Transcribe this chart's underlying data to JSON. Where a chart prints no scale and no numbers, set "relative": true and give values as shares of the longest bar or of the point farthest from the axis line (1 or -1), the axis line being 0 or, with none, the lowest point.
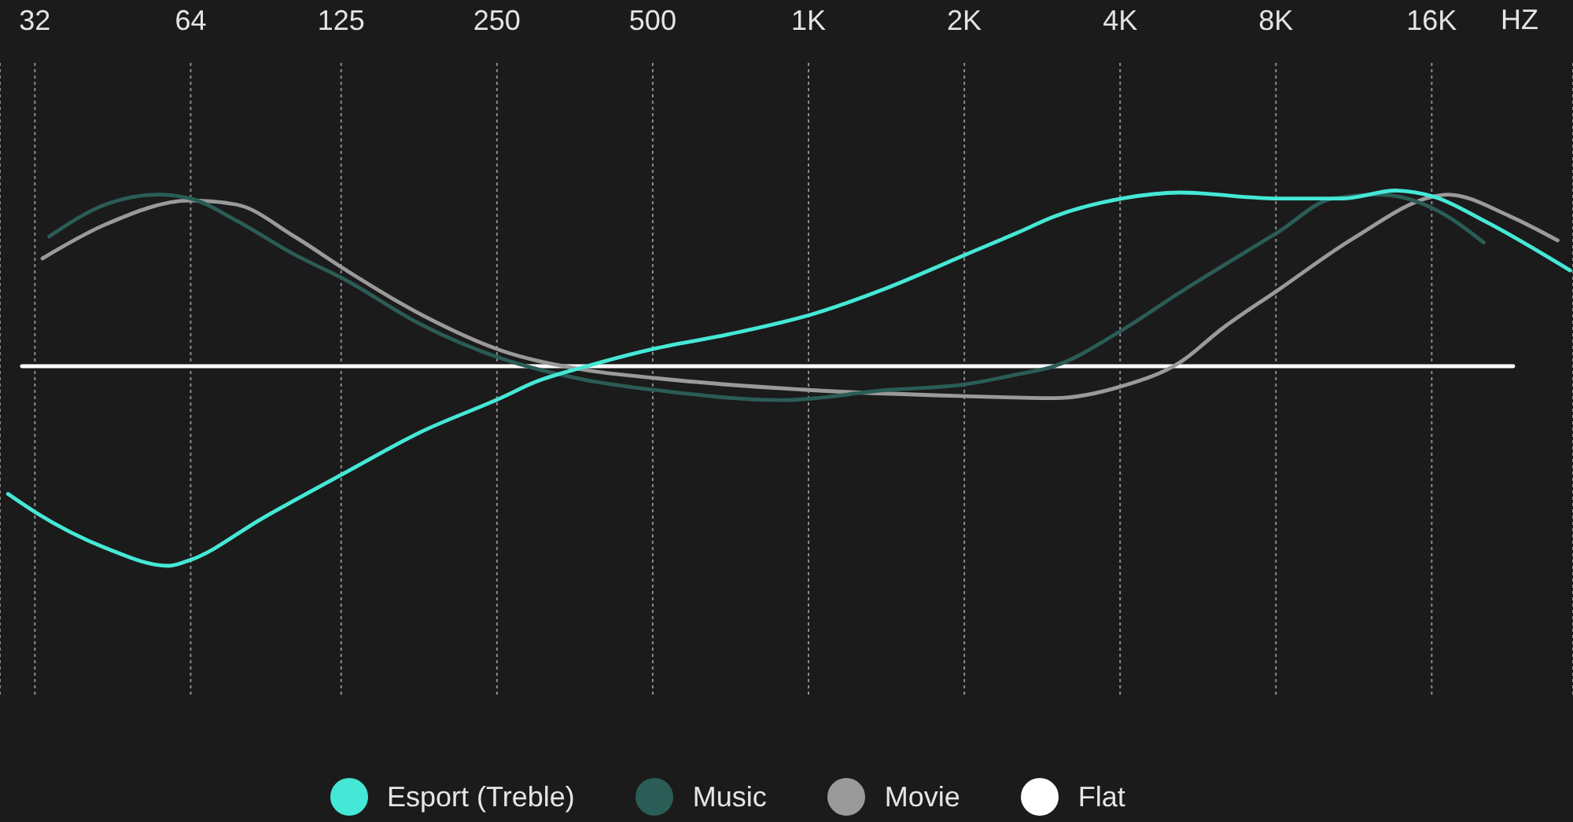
{
  "chart_data": {
    "type": "line",
    "relative": true,
    "log": "x",
    "xlim": [
      27.4,
      30000
    ],
    "xticks": [
      32,
      64,
      125,
      250,
      500,
      {
        "value": 1000,
        "label": "1K"
      },
      {
        "value": 2000,
        "label": "2K"
      },
      {
        "value": 4000,
        "label": "4K"
      },
      {
        "value": 8000,
        "label": "8K"
      },
      {
        "value": 16000,
        "label": "16K"
      }
    ],
    "xlabel": "HZ",
    "grid": "x",
    "legend": "bottom",
    "tick_labels": "x",
    "marker": "none",
    "line_style": "solid",
    "series": [
      {
        "name": "Esport (Treble)",
        "color": "#45e8d6",
        "x": [
          28.4,
          32,
          43.8,
          58,
          64,
          88.3,
          128,
          178,
          254,
          296,
          373,
          508,
          701,
          1015,
          1411,
          2016,
          2540,
          2983,
          4032,
          5223,
          8061,
          10736,
          13622,
          16118,
          20160,
          29629
        ],
        "values": [
          -0.64,
          -0.73,
          -0.91,
          -1,
          -0.97,
          -0.76,
          -0.53,
          -0.33,
          -0.16,
          -0.08,
          0,
          0.09,
          0.16,
          0.26,
          0.39,
          0.56,
          0.67,
          0.75,
          0.84,
          0.87,
          0.84,
          0.84,
          0.88,
          0.85,
          0.73,
          0.48
        ]
      },
      {
        "name": "Music",
        "color": "#2b5c56",
        "x": [
          34.1,
          43.8,
          55.2,
          64,
          78.4,
          101.5,
          128,
          178,
          254,
          373,
          508,
          889,
          1411,
          2016,
          2540,
          2983,
          4032,
          5223,
          8061,
          10298,
          12701,
          16118,
          20160
        ],
        "values": [
          0.65,
          0.81,
          0.86,
          0.84,
          0.73,
          0.56,
          0.43,
          0.21,
          0.04,
          -0.07,
          -0.12,
          -0.17,
          -0.12,
          -0.09,
          -0.04,
          0,
          0.18,
          0.37,
          0.67,
          0.84,
          0.86,
          0.79,
          0.62
        ]
      },
      {
        "name": "Movie",
        "color": "#9a9a9a",
        "x": [
          33.1,
          43.8,
          64,
          78.4,
          101.5,
          128,
          178,
          254,
          373,
          508,
          1015,
          2016,
          2983,
          4032,
          5223,
          6310,
          8061,
          11277,
          16118,
          17165,
          22707,
          28016
        ],
        "values": [
          0.54,
          0.71,
          0.83,
          0.81,
          0.65,
          0.48,
          0.26,
          0.08,
          -0.02,
          -0.06,
          -0.12,
          -0.15,
          -0.16,
          -0.1,
          0.02,
          0.19,
          0.38,
          0.64,
          0.85,
          0.86,
          0.75,
          0.63
        ]
      },
      {
        "name": "Flat",
        "color": "#ffffff",
        "x": [
          30.2,
          23000
        ],
        "values": [
          0,
          0
        ]
      }
    ]
  }
}
